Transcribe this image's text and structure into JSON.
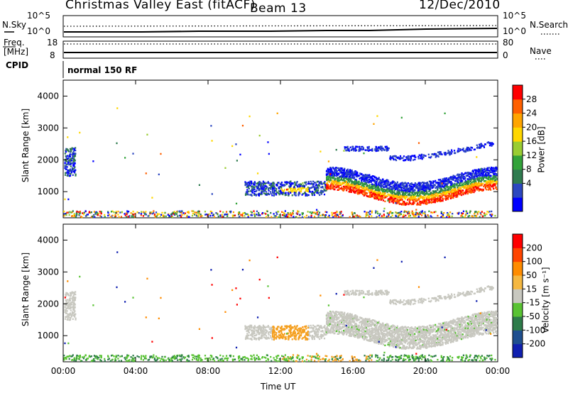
{
  "header": {
    "title": "Christmas Valley East (fitACF)",
    "beam": "Beam 13",
    "date": "12/Dec/2010"
  },
  "top_panels": {
    "nsky_label": "N.Sky",
    "nsky_ticks": [
      "10^5",
      "10^0"
    ],
    "nsearch_label": "N.Search",
    "nsearch_ticks": [
      "10^5",
      "10^0"
    ],
    "freq_label": "Freq.",
    "freq_unit": "[MHz]",
    "freq_ticks": [
      "18",
      "8"
    ],
    "nave_label": "Nave",
    "nave_ticks": [
      "80",
      "0"
    ],
    "cpid_label": "CPID",
    "cpid_value": "normal 150 RF"
  },
  "chart_data": [
    {
      "type": "heatmap",
      "name": "power",
      "ylabel": "Slant Range [km]",
      "ylim": [
        180,
        4500
      ],
      "yticks": [
        "1000",
        "2000",
        "3000",
        "4000"
      ],
      "colorbar_label": "Power [dB]",
      "colorbar_ticks": [
        "28",
        "24",
        "20",
        "16",
        "12",
        "8",
        "4"
      ],
      "colorbar_colors": [
        "#0000ff",
        "#2c47c0",
        "#2f7b4f",
        "#33a33a",
        "#9acd33",
        "#ffd700",
        "#ffa500",
        "#ff6000",
        "#ff0000"
      ]
    },
    {
      "type": "heatmap",
      "name": "velocity",
      "ylabel": "Slant Range [km]",
      "ylim": [
        180,
        4500
      ],
      "yticks": [
        "1000",
        "2000",
        "3000",
        "4000"
      ],
      "colorbar_label": "Velocity [m s⁻¹]",
      "colorbar_ticks": [
        "200",
        "100",
        "50",
        "15",
        "-15",
        "-50",
        "-100",
        "-200"
      ],
      "colorbar_colors": [
        "#1020b0",
        "#1f4f8f",
        "#2e7c4a",
        "#59c333",
        "#c8c8c0",
        "#f5b841",
        "#ff8c00",
        "#ff4500",
        "#ff0000"
      ]
    }
  ],
  "x_axis": {
    "ticks": [
      "00:00",
      "04:00",
      "08:00",
      "12:00",
      "16:00",
      "20:00",
      "00:00"
    ],
    "label": "Time UT"
  }
}
